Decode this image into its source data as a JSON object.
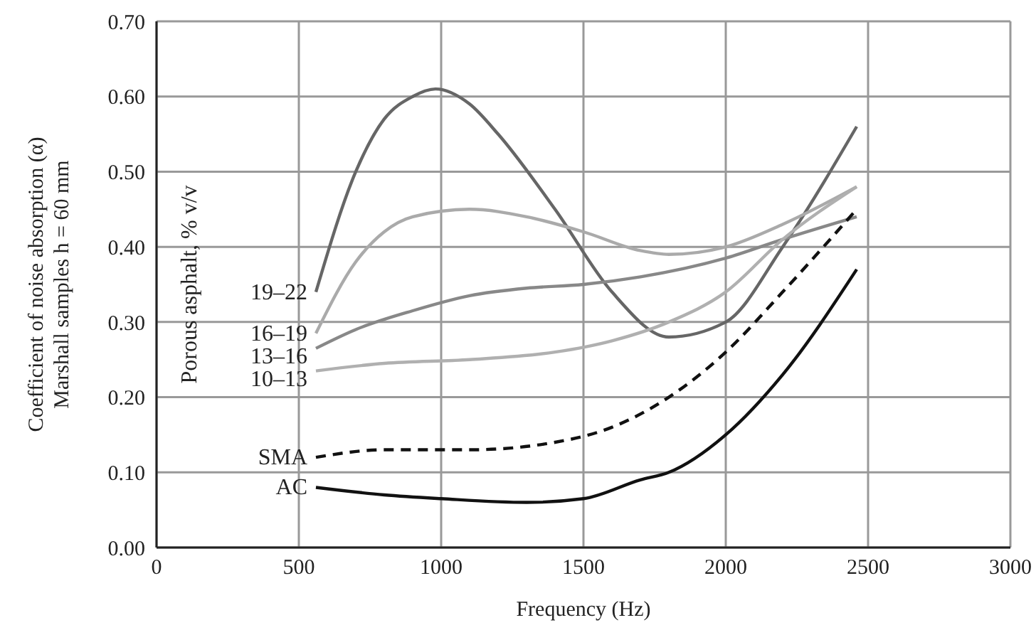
{
  "chart_data": {
    "type": "line",
    "xlabel": "Frequency (Hz)",
    "ylabel": "Coefficient of noise absorption (α)\nMarshall samples h = 60 mm",
    "annotations": [
      "Porous asphalt, % v/v"
    ],
    "xlim": [
      0,
      3000
    ],
    "xticks": [
      0,
      500,
      1000,
      1500,
      2000,
      2500,
      3000
    ],
    "ylim": [
      0,
      0.7
    ],
    "yticks": [
      {
        "value": 0,
        "label": "0.00"
      },
      {
        "value": 0.1,
        "label": "0.10"
      },
      {
        "value": 0.2,
        "label": "0.20"
      },
      {
        "value": 0.3,
        "label": "0.30"
      },
      {
        "value": 0.4,
        "label": "0.40"
      },
      {
        "value": 0.5,
        "label": "0.50"
      },
      {
        "value": 0.6,
        "label": "0.60"
      },
      {
        "value": 0.7,
        "label": "0.70"
      }
    ],
    "grid": true,
    "legend": false,
    "marker": "none",
    "series": [
      {
        "name": "19–22",
        "color": "#666666",
        "x": [
          560,
          700,
          800,
          900,
          980,
          1100,
          1200,
          1400,
          1600,
          1800,
          2000,
          2200,
          2460
        ],
        "values": [
          0.34,
          0.5,
          0.57,
          0.6,
          0.61,
          0.59,
          0.55,
          0.45,
          0.34,
          0.28,
          0.3,
          0.4,
          0.56
        ]
      },
      {
        "name": "16–19",
        "color": "#aaaaaa",
        "x": [
          560,
          700,
          800,
          900,
          1100,
          1300,
          1500,
          1700,
          1800,
          2000,
          2200,
          2460
        ],
        "values": [
          0.285,
          0.38,
          0.42,
          0.44,
          0.45,
          0.44,
          0.42,
          0.395,
          0.39,
          0.4,
          0.43,
          0.48
        ]
      },
      {
        "name": "13–16",
        "color": "#888888",
        "x": [
          560,
          700,
          900,
          1100,
          1300,
          1500,
          1700,
          2000,
          2200,
          2460
        ],
        "values": [
          0.265,
          0.29,
          0.315,
          0.335,
          0.345,
          0.35,
          0.36,
          0.385,
          0.41,
          0.44
        ]
      },
      {
        "name": "10–13",
        "color": "#b0b0b0",
        "x": [
          560,
          800,
          1100,
          1400,
          1600,
          1800,
          2000,
          2200,
          2460
        ],
        "values": [
          0.235,
          0.245,
          0.25,
          0.26,
          0.275,
          0.3,
          0.34,
          0.41,
          0.48
        ]
      },
      {
        "name": "SMA",
        "color": "#111111",
        "line_style": "dashed",
        "x": [
          560,
          800,
          1100,
          1400,
          1600,
          1800,
          2000,
          2200,
          2460
        ],
        "values": [
          0.12,
          0.13,
          0.13,
          0.14,
          0.16,
          0.2,
          0.26,
          0.34,
          0.45
        ]
      },
      {
        "name": "AC",
        "color": "#111111",
        "x": [
          560,
          800,
          1000,
          1300,
          1500,
          1700,
          1800,
          2000,
          2200,
          2460
        ],
        "values": [
          0.08,
          0.07,
          0.065,
          0.06,
          0.065,
          0.09,
          0.1,
          0.15,
          0.23,
          0.37
        ]
      }
    ]
  }
}
